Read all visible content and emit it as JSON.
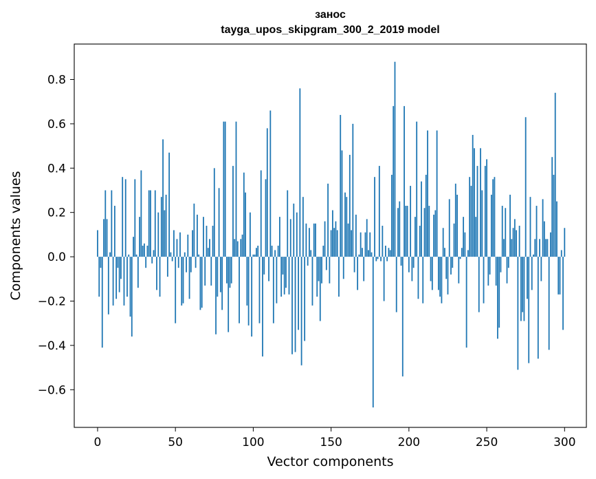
{
  "chart_data": {
    "type": "bar",
    "title": "занос",
    "subtitle": "tayga_upos_skipgram_300_2_2019 model",
    "xlabel": "Vector components",
    "ylabel": "Components values",
    "xlim": [
      -15,
      314
    ],
    "ylim": [
      -0.77,
      0.96
    ],
    "xticks": [
      0,
      50,
      100,
      150,
      200,
      250,
      300
    ],
    "xtick_labels": [
      "0",
      "50",
      "100",
      "150",
      "200",
      "250",
      "300"
    ],
    "yticks": [
      -0.6,
      -0.4,
      -0.2,
      0.0,
      0.2,
      0.4,
      0.6,
      0.8
    ],
    "ytick_labels": [
      "−0.6",
      "−0.4",
      "−0.2",
      "0.0",
      "0.2",
      "0.4",
      "0.6",
      "0.8"
    ],
    "bar_color": "#1f77b4",
    "grid": false,
    "values": [
      0.12,
      -0.18,
      -0.05,
      -0.41,
      0.17,
      0.3,
      0.17,
      -0.26,
      0.02,
      0.3,
      -0.22,
      0.23,
      -0.19,
      -0.05,
      -0.16,
      -0.1,
      0.36,
      -0.22,
      0.35,
      -0.18,
      0.01,
      -0.27,
      -0.36,
      0.09,
      0.35,
      0.01,
      -0.14,
      0.18,
      0.39,
      0.05,
      0.06,
      -0.05,
      0.05,
      0.3,
      0.3,
      -0.03,
      0.03,
      0.3,
      -0.15,
      0.2,
      -0.18,
      0.27,
      0.53,
      0.21,
      0.28,
      -0.09,
      0.47,
      0.02,
      -0.02,
      0.12,
      -0.3,
      0.08,
      -0.05,
      0.11,
      -0.22,
      -0.21,
      0.02,
      -0.07,
      0.1,
      -0.19,
      -0.07,
      0.12,
      0.24,
      -0.05,
      0.19,
      0.01,
      -0.24,
      -0.23,
      0.18,
      -0.13,
      0.14,
      0.04,
      0.08,
      -0.13,
      0.14,
      0.4,
      -0.35,
      -0.18,
      0.31,
      -0.16,
      -0.24,
      0.61,
      0.61,
      -0.12,
      -0.34,
      -0.14,
      -0.12,
      0.41,
      0.08,
      0.61,
      0.07,
      -0.3,
      0.08,
      0.1,
      0.38,
      0.29,
      -0.22,
      -0.31,
      0.2,
      -0.36,
      0.01,
      0.01,
      0.04,
      0.05,
      -0.3,
      0.39,
      -0.45,
      -0.08,
      0.35,
      0.58,
      -0.11,
      0.66,
      0.05,
      -0.3,
      0.03,
      -0.21,
      0.05,
      0.18,
      -0.18,
      -0.08,
      -0.17,
      -0.14,
      0.3,
      -0.17,
      0.17,
      -0.44,
      0.24,
      -0.43,
      0.2,
      -0.33,
      0.76,
      -0.49,
      0.27,
      -0.38,
      0.15,
      -0.04,
      0.13,
      0.03,
      -0.22,
      0.15,
      0.15,
      -0.18,
      -0.11,
      -0.29,
      -0.12,
      0.05,
      0.16,
      -0.06,
      0.33,
      -0.12,
      0.12,
      0.21,
      0.13,
      0.16,
      0.12,
      -0.18,
      0.64,
      0.48,
      -0.1,
      0.29,
      0.27,
      0.15,
      0.46,
      0.12,
      0.6,
      -0.07,
      0.19,
      -0.15,
      0.01,
      0.11,
      0.04,
      -0.11,
      0.11,
      0.17,
      0.03,
      0.11,
      0.02,
      -0.68,
      0.36,
      -0.02,
      -0.01,
      0.41,
      -0.02,
      0.14,
      -0.2,
      0.05,
      -0.02,
      0.04,
      0.03,
      0.37,
      0.68,
      0.88,
      -0.25,
      0.22,
      0.25,
      -0.04,
      -0.54,
      0.68,
      0.23,
      0.23,
      -0.07,
      0.32,
      -0.11,
      -0.05,
      0.18,
      0.61,
      -0.19,
      0.14,
      0.34,
      -0.21,
      0.22,
      0.37,
      0.57,
      0.23,
      -0.11,
      -0.15,
      0.19,
      0.21,
      0.57,
      -0.15,
      -0.18,
      -0.21,
      0.13,
      0.04,
      -0.1,
      -0.17,
      0.26,
      -0.08,
      -0.05,
      0.15,
      0.33,
      0.28,
      -0.12,
      -0.01,
      0.04,
      0.18,
      0.11,
      -0.41,
      0.03,
      0.36,
      0.32,
      0.55,
      0.49,
      0.18,
      0.41,
      -0.25,
      0.49,
      0.3,
      -0.21,
      0.41,
      0.44,
      -0.13,
      -0.08,
      0.28,
      0.35,
      0.36,
      -0.13,
      -0.37,
      -0.32,
      -0.07,
      0.23,
      0.08,
      0.22,
      -0.12,
      -0.05,
      0.28,
      0.08,
      0.13,
      0.17,
      0.12,
      -0.51,
      0.14,
      -0.29,
      -0.25,
      -0.29,
      0.63,
      -0.19,
      -0.48,
      0.27,
      -0.15,
      0.01,
      0.08,
      0.23,
      -0.46,
      0.08,
      -0.11,
      0.26,
      0.16,
      0.08,
      0.08,
      -0.42,
      0.11,
      0.45,
      0.37,
      0.74,
      0.25,
      -0.17,
      -0.17,
      0.03,
      -0.33,
      0.13
    ]
  }
}
